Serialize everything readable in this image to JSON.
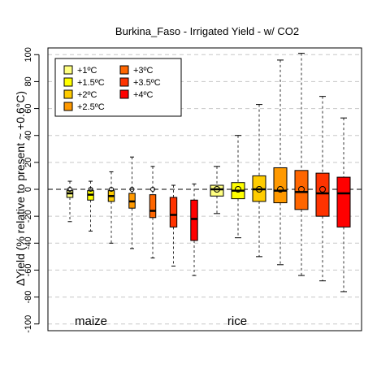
{
  "chart_data": {
    "type": "box",
    "title": "Burkina_Faso - Irrigated Yield - w/ CO2",
    "ylabel": "ΔYield (% relative to present ~ +0.6°C)",
    "ylim": [
      -105,
      105
    ],
    "yticks": [
      -100,
      -80,
      -60,
      -40,
      -20,
      0,
      20,
      40,
      60,
      80,
      100
    ],
    "grid": "horizontal dashed",
    "legend_position": "top-left",
    "legend": [
      {
        "label": "+1ºC",
        "color": "#ffff80"
      },
      {
        "label": "+1.5ºC",
        "color": "#ffff00"
      },
      {
        "label": "+2ºC",
        "color": "#ffcc00"
      },
      {
        "label": "+2.5ºC",
        "color": "#ff9900"
      },
      {
        "label": "+3ºC",
        "color": "#ff6600"
      },
      {
        "label": "+3.5ºC",
        "color": "#ff3300"
      },
      {
        "label": "+4ºC",
        "color": "#ff0000"
      }
    ],
    "group_labels": [
      "maize",
      "rice"
    ],
    "series": [
      {
        "group": "maize",
        "level": "+1ºC",
        "whisker_low": -24,
        "q1": -6,
        "median": -3,
        "q3": -1,
        "whisker_high": 6,
        "mean": 0
      },
      {
        "group": "maize",
        "level": "+1.5ºC",
        "whisker_low": -31,
        "q1": -8,
        "median": -4,
        "q3": -1,
        "whisker_high": 6,
        "mean": 0
      },
      {
        "group": "maize",
        "level": "+2ºC",
        "whisker_low": -40,
        "q1": -9,
        "median": -5,
        "q3": -1,
        "whisker_high": 13,
        "mean": 0
      },
      {
        "group": "maize",
        "level": "+2.5ºC",
        "whisker_low": -44,
        "q1": -14,
        "median": -9,
        "q3": -3,
        "whisker_high": 24,
        "mean": 0
      },
      {
        "group": "maize",
        "level": "+3ºC",
        "whisker_low": -51,
        "q1": -21,
        "median": -16,
        "q3": -4,
        "whisker_high": 17,
        "mean": 0
      },
      {
        "group": "maize",
        "level": "+3.5ºC",
        "whisker_low": -57,
        "q1": -28,
        "median": -19,
        "q3": -6,
        "whisker_high": 3,
        "mean": null
      },
      {
        "group": "maize",
        "level": "+4ºC",
        "whisker_low": -64,
        "q1": -38,
        "median": -22,
        "q3": -8,
        "whisker_high": 4,
        "mean": null
      },
      {
        "group": "rice",
        "level": "+1ºC",
        "whisker_low": -18,
        "q1": -5,
        "median": 0,
        "q3": 3,
        "whisker_high": 17,
        "mean": 0
      },
      {
        "group": "rice",
        "level": "+1.5ºC",
        "whisker_low": -36,
        "q1": -7,
        "median": -1,
        "q3": 5,
        "whisker_high": 40,
        "mean": 0
      },
      {
        "group": "rice",
        "level": "+2ºC",
        "whisker_low": -50,
        "q1": -9,
        "median": 0,
        "q3": 10,
        "whisker_high": 63,
        "mean": 0
      },
      {
        "group": "rice",
        "level": "+2.5ºC",
        "whisker_low": -56,
        "q1": -10,
        "median": -1,
        "q3": 16,
        "whisker_high": 96,
        "mean": 0
      },
      {
        "group": "rice",
        "level": "+3ºC",
        "whisker_low": -64,
        "q1": -15,
        "median": -2,
        "q3": 14,
        "whisker_high": 101,
        "mean": 0
      },
      {
        "group": "rice",
        "level": "+3.5ºC",
        "whisker_low": -68,
        "q1": -20,
        "median": -3,
        "q3": 12,
        "whisker_high": 69,
        "mean": 0
      },
      {
        "group": "rice",
        "level": "+4ºC",
        "whisker_low": -76,
        "q1": -28,
        "median": -3,
        "q3": 9,
        "whisker_high": 53,
        "mean": null
      }
    ]
  }
}
